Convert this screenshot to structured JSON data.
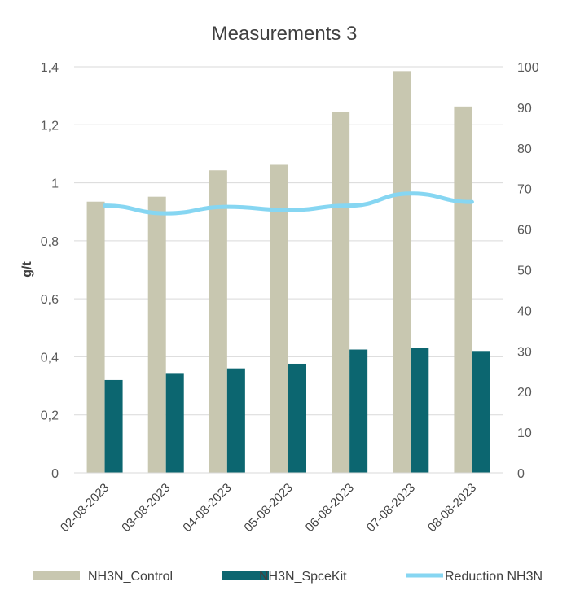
{
  "chart_data": {
    "type": "bar",
    "title": "Measurements 3",
    "ylabel": "g/t",
    "ylabel_right": "",
    "categories": [
      "02-08-2023",
      "03-08-2023",
      "04-08-2023",
      "05-08-2023",
      "06-08-2023",
      "07-08-2023",
      "08-08-2023"
    ],
    "ylim": [
      0,
      1.4
    ],
    "y2lim": [
      0,
      100
    ],
    "yticks": [
      "0",
      "0,2",
      "0,4",
      "0,6",
      "0,8",
      "1",
      "1,2",
      "1,4"
    ],
    "y2ticks": [
      "0",
      "10",
      "20",
      "30",
      "40",
      "50",
      "60",
      "70",
      "80",
      "90",
      "100"
    ],
    "grid": true,
    "legend_position": "bottom",
    "series": [
      {
        "name": "NH3N_Control",
        "kind": "bar",
        "axis": "left",
        "color": "#c8c7b0",
        "values": [
          0.935,
          0.952,
          1.043,
          1.062,
          1.245,
          1.385,
          1.263
        ]
      },
      {
        "name": "NH3N_SpceKit",
        "kind": "bar",
        "axis": "left",
        "color": "#0c6670",
        "values": [
          0.32,
          0.344,
          0.36,
          0.376,
          0.425,
          0.432,
          0.42
        ]
      },
      {
        "name": "Reduction NH3N",
        "kind": "line",
        "axis": "right",
        "color": "#86d6f2",
        "values": [
          65.8,
          63.9,
          65.5,
          64.7,
          65.8,
          68.8,
          66.7
        ]
      }
    ]
  }
}
